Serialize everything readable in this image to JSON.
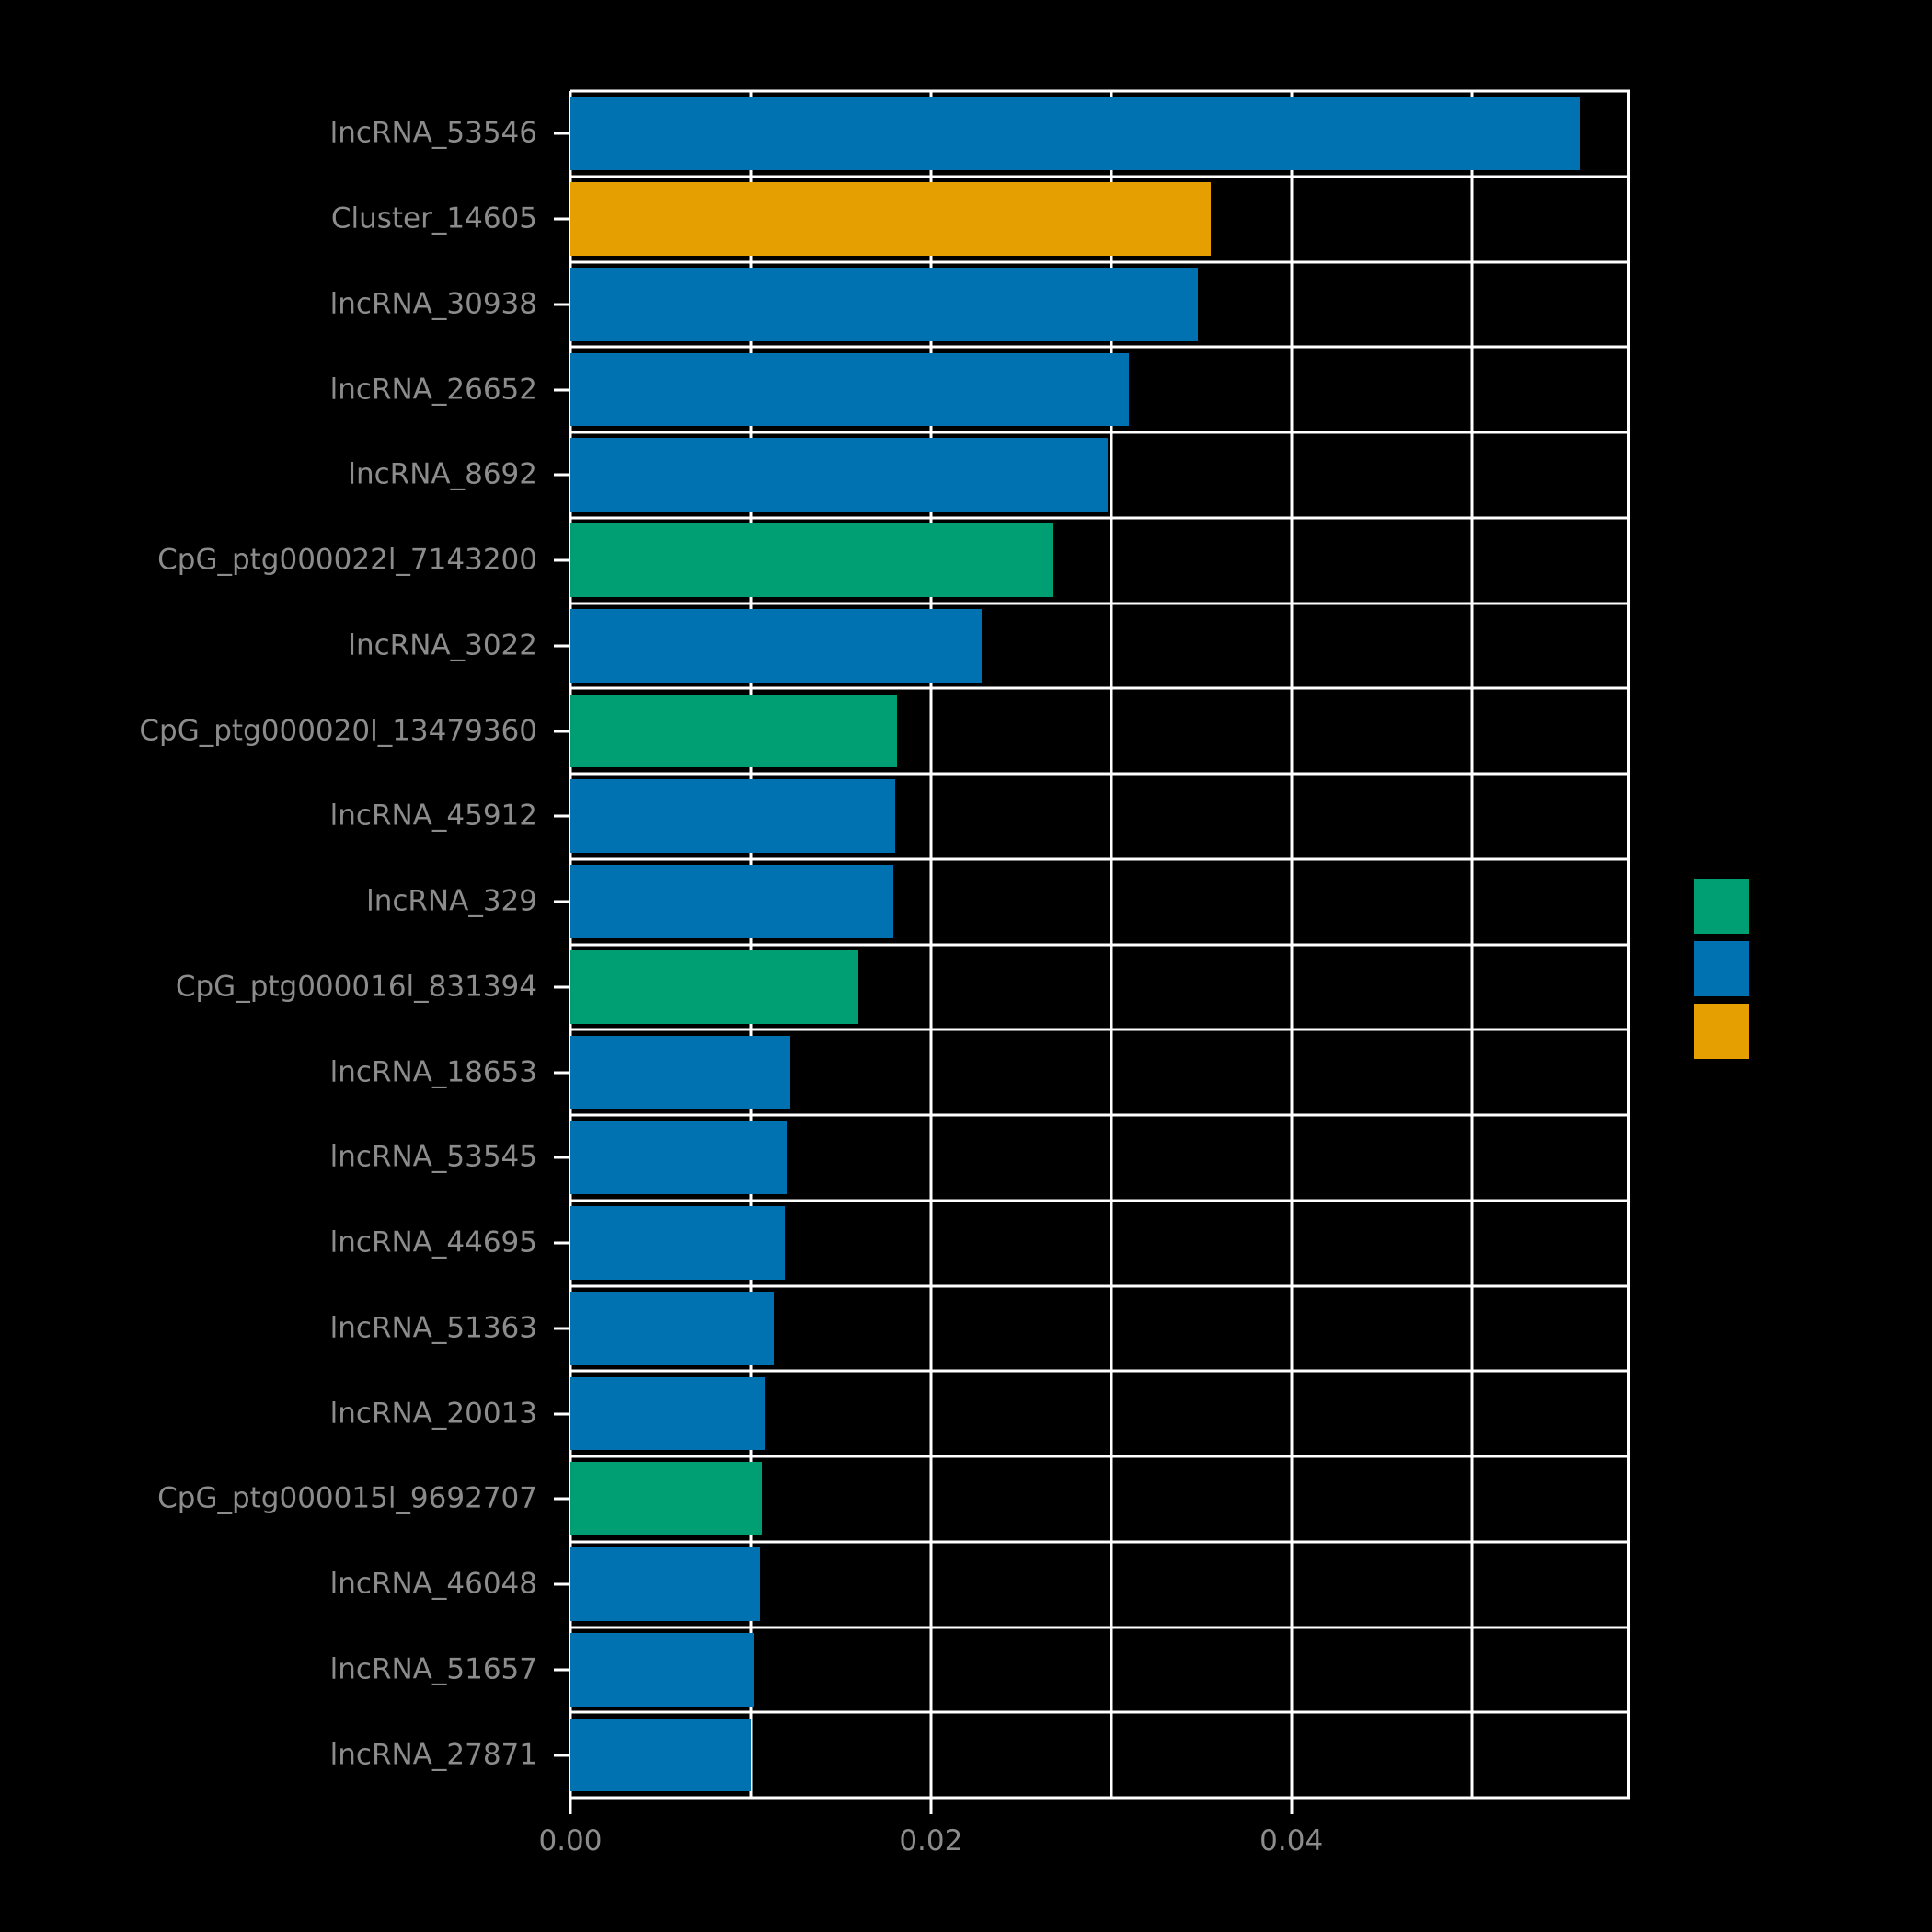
{
  "chart_data": {
    "type": "bar",
    "orientation": "horizontal",
    "title": "",
    "xlabel": "",
    "ylabel": "",
    "categories": [
      "lncRNA_53546",
      "Cluster_14605",
      "lncRNA_30938",
      "lncRNA_26652",
      "lncRNA_8692",
      "CpG_ptg000022l_7143200",
      "lncRNA_3022",
      "CpG_ptg000020l_13479360",
      "lncRNA_45912",
      "lncRNA_329",
      "CpG_ptg000016l_831394",
      "lncRNA_18653",
      "lncRNA_53545",
      "lncRNA_44695",
      "lncRNA_51363",
      "lncRNA_20013",
      "CpG_ptg000015l_9692707",
      "lncRNA_46048",
      "lncRNA_51657",
      "lncRNA_27871"
    ],
    "values": [
      0.056,
      0.0355,
      0.0348,
      0.031,
      0.0298,
      0.0268,
      0.0228,
      0.0181,
      0.018,
      0.0179,
      0.016,
      0.0122,
      0.012,
      0.0119,
      0.0113,
      0.0108,
      0.0106,
      0.0105,
      0.0102,
      0.01
    ],
    "colors": [
      "blue",
      "orange",
      "blue",
      "blue",
      "blue",
      "green",
      "blue",
      "green",
      "blue",
      "blue",
      "green",
      "blue",
      "blue",
      "blue",
      "blue",
      "blue",
      "green",
      "blue",
      "blue",
      "blue"
    ],
    "palette": {
      "blue": "#0072B2",
      "green": "#009E73",
      "orange": "#E69F00"
    },
    "x_ticks": [
      0,
      0.02,
      0.04
    ],
    "x_tick_labels": [
      "0.00",
      "0.02",
      "0.04"
    ],
    "x_gridlines": [
      0,
      0.01,
      0.02,
      0.03,
      0.04,
      0.05
    ],
    "xlim": [
      0,
      0.0588
    ],
    "grid": "on",
    "grid_color": "#ffffff",
    "background_color": "#000000",
    "text_color": "#8c8c8c",
    "bar_height_fraction": 0.86,
    "legend": {
      "position": "right",
      "swatches": [
        "green",
        "blue",
        "orange"
      ]
    }
  }
}
